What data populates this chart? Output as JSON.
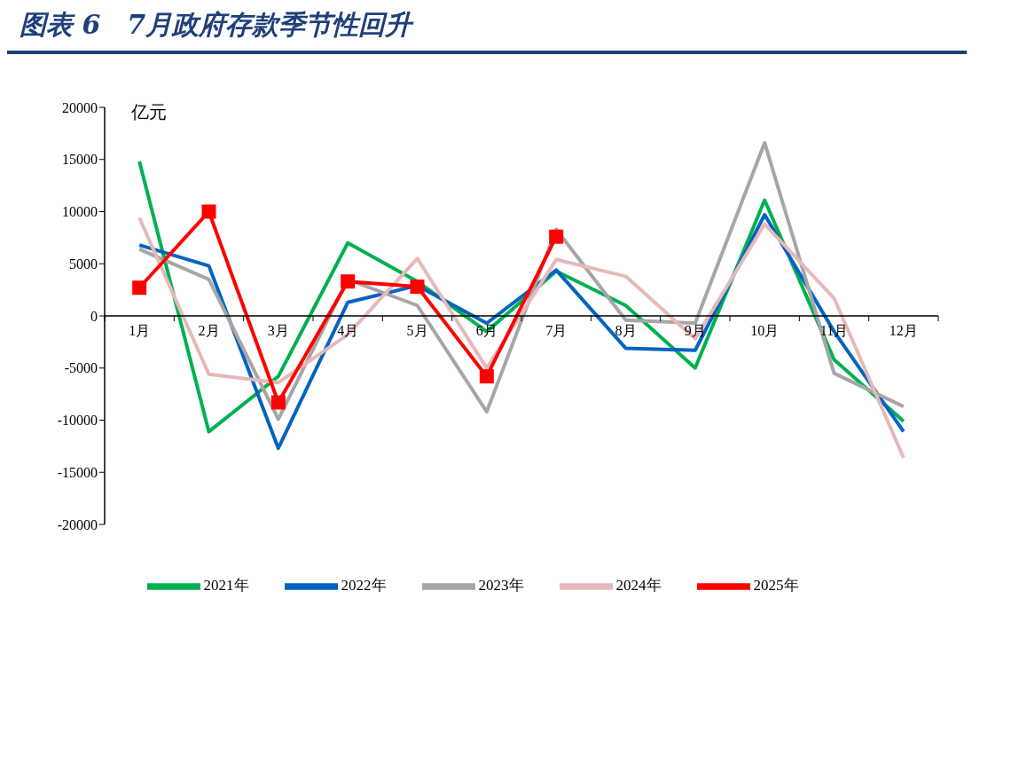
{
  "chart_data": {
    "type": "line",
    "title": "图表 6　7月政府存款季节性回升",
    "ylabel": "亿元",
    "categories": [
      "1月",
      "2月",
      "3月",
      "4月",
      "5月",
      "6月",
      "7月",
      "8月",
      "9月",
      "10月",
      "11月",
      "12月"
    ],
    "ylim": [
      -20000,
      20000
    ],
    "yticks": [
      -20000,
      -15000,
      -10000,
      -5000,
      0,
      5000,
      10000,
      15000,
      20000
    ],
    "grid": false,
    "legend": "bottom",
    "line_style": "solid",
    "series": [
      {
        "name": "2021年",
        "color": "#00b050",
        "marker": "none",
        "values": [
          14800,
          -11100,
          -5800,
          7000,
          3300,
          -1500,
          4300,
          1000,
          -5000,
          11100,
          -4200,
          -10100
        ]
      },
      {
        "name": "2022年",
        "color": "#0563c1",
        "marker": "none",
        "values": [
          6800,
          4800,
          -12700,
          1300,
          2900,
          -700,
          4400,
          -3100,
          -3300,
          9700,
          -1500,
          -11100
        ]
      },
      {
        "name": "2023年",
        "color": "#a6a6a6",
        "marker": "none",
        "values": [
          6400,
          3500,
          -9900,
          3500,
          1000,
          -9200,
          8300,
          -400,
          -700,
          16600,
          -5500,
          -8700
        ]
      },
      {
        "name": "2024年",
        "color": "#e6b9b8",
        "marker": "none",
        "values": [
          9400,
          -5600,
          -6400,
          -1800,
          5500,
          -5000,
          5400,
          3800,
          -2200,
          8800,
          1700,
          -13600
        ]
      },
      {
        "name": "2025年",
        "color": "#ff0000",
        "marker": "square",
        "values": [
          2700,
          10000,
          -8300,
          3300,
          2800,
          -5800,
          7600,
          null,
          null,
          null,
          null,
          null
        ]
      }
    ]
  }
}
